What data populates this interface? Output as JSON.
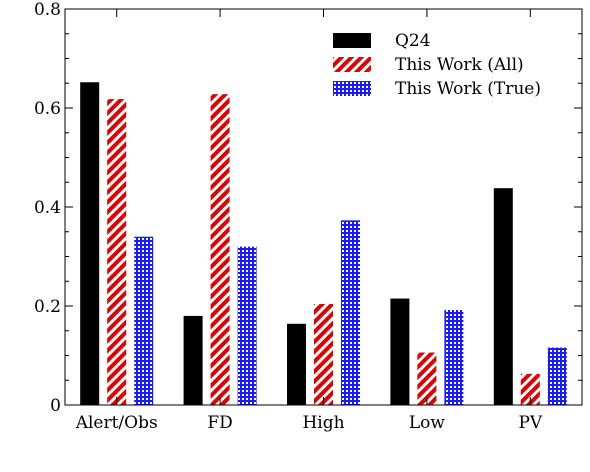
{
  "chart_data": {
    "type": "bar",
    "categories": [
      "Alert/Obs",
      "FD",
      "High",
      "Low",
      "PV"
    ],
    "series": [
      {
        "name": "Q24",
        "values": [
          0.652,
          0.18,
          0.164,
          0.215,
          0.438
        ],
        "color": "#000000",
        "pattern": "solid"
      },
      {
        "name": "This Work (All)",
        "values": [
          0.618,
          0.628,
          0.204,
          0.106,
          0.063
        ],
        "color": "#e00000",
        "pattern": "diagonal-hatch"
      },
      {
        "name": "This Work (True)",
        "values": [
          0.34,
          0.32,
          0.373,
          0.192,
          0.116
        ],
        "color": "#1a1aff",
        "pattern": "grid-hatch"
      }
    ],
    "ylim": [
      0,
      0.8
    ],
    "yticks": [
      "0",
      "0.2",
      "0.4",
      "0.6",
      "0.8"
    ],
    "title": "",
    "xlabel": "",
    "ylabel": "",
    "legend_position": "top-right",
    "grid": false
  }
}
